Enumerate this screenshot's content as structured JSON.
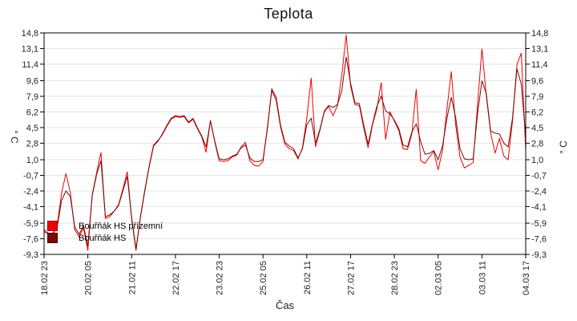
{
  "title": "Teplota",
  "colors": {
    "background": "#ffffff",
    "axis": "#000000",
    "grid": "#e4e4e4",
    "tick_text": "#222222",
    "series_red": "#ee0000",
    "series_dark": "#7a0808"
  },
  "chart_data": {
    "type": "line",
    "title": "Teplota",
    "xlabel": "Čas",
    "ylabel_left": "° C",
    "ylabel_right": "° C",
    "ylim": [
      -9.3,
      14.8
    ],
    "grid": "horizontal",
    "legend_position": "inside-bottom-left",
    "y_tick_values": [
      14.8,
      13.1,
      11.4,
      9.6,
      7.9,
      6.2,
      4.5,
      2.8,
      1.0,
      -0.7,
      -2.4,
      -4.1,
      -5.9,
      -7.6,
      -9.3
    ],
    "y_tick_labels": [
      "14,8",
      "13,1",
      "11,4",
      "9,6",
      "7,9",
      "6,2",
      "4,5",
      "2,8",
      "1,0",
      "-0,7",
      "-2,4",
      "-4,1",
      "-5,9",
      "-7,6",
      "-9,3"
    ],
    "x_tick_hours": [
      0,
      30,
      60,
      90,
      120,
      150,
      180,
      210,
      240,
      270,
      300,
      330
    ],
    "x_tick_labels": [
      "18.02 23",
      "20.02 05",
      "21.02 11",
      "22.02 17",
      "23.02 23",
      "25.02 05",
      "26.02 11",
      "27.02 17",
      "28.02 23",
      "02.03 05",
      "03.03 11",
      "04.03 17"
    ],
    "x_span_hours": 330,
    "t_start_hours": 0,
    "t_step_hours": 3,
    "series": [
      {
        "id": "prizemni",
        "name": "Bouřňák HS přízemní",
        "color": "#ee0000",
        "swatch_color": "#ee0000",
        "values": [
          -6.6,
          -7.0,
          -7.2,
          -6.1,
          -2.6,
          -0.5,
          -2.6,
          -6.6,
          -7.4,
          -6.4,
          -8.9,
          -2.8,
          -0.4,
          1.8,
          -5.4,
          -5.2,
          -4.6,
          -3.9,
          -2.2,
          -0.3,
          -5.5,
          -8.9,
          -5.2,
          -2.3,
          0.3,
          2.6,
          3.1,
          3.7,
          4.6,
          5.4,
          5.7,
          5.6,
          5.7,
          5.0,
          5.4,
          4.4,
          3.5,
          1.8,
          5.3,
          2.9,
          0.9,
          0.8,
          0.9,
          1.3,
          1.5,
          2.4,
          2.9,
          0.9,
          0.4,
          0.3,
          0.8,
          4.5,
          8.5,
          7.5,
          4.6,
          2.7,
          2.2,
          2.0,
          1.1,
          2.3,
          5.5,
          9.9,
          2.4,
          4.2,
          6.2,
          6.8,
          5.8,
          6.9,
          10.2,
          14.6,
          9.0,
          7.0,
          6.9,
          4.5,
          2.3,
          4.8,
          6.5,
          9.4,
          3.2,
          6.2,
          5.2,
          4.2,
          2.2,
          2.1,
          3.8,
          8.7,
          0.9,
          0.6,
          1.3,
          1.9,
          -0.1,
          2.0,
          6.5,
          10.6,
          4.8,
          1.3,
          0.1,
          0.4,
          0.7,
          7.0,
          13.1,
          8.0,
          3.9,
          1.7,
          3.3,
          1.4,
          1.0,
          5.3,
          11.4,
          12.6,
          2.0
        ]
      },
      {
        "id": "hs",
        "name": "Bouřňák HS",
        "color": "#7a0808",
        "swatch_color": "#7a0808",
        "values": [
          -6.8,
          -7.1,
          -7.0,
          -6.3,
          -3.4,
          -2.4,
          -3.0,
          -6.3,
          -7.1,
          -6.2,
          -8.4,
          -2.9,
          -0.6,
          0.9,
          -5.2,
          -5.0,
          -4.6,
          -4.0,
          -2.4,
          -0.8,
          -5.3,
          -8.7,
          -5.3,
          -2.4,
          0.2,
          2.5,
          3.0,
          3.8,
          4.7,
          5.5,
          5.8,
          5.7,
          5.8,
          5.1,
          5.5,
          4.5,
          3.6,
          2.4,
          5.2,
          3.0,
          1.1,
          1.0,
          1.1,
          1.4,
          1.6,
          2.3,
          2.6,
          1.2,
          0.8,
          0.8,
          1.0,
          4.3,
          8.7,
          7.8,
          4.8,
          2.9,
          2.5,
          2.2,
          1.2,
          2.2,
          4.8,
          5.5,
          2.8,
          4.3,
          6.3,
          6.9,
          6.7,
          7.0,
          8.5,
          12.2,
          9.3,
          7.2,
          7.1,
          4.8,
          2.7,
          4.9,
          6.8,
          7.9,
          6.3,
          6.0,
          5.3,
          4.4,
          2.6,
          2.4,
          4.0,
          4.9,
          3.0,
          1.6,
          1.7,
          2.0,
          1.0,
          2.5,
          5.5,
          7.8,
          5.6,
          2.2,
          1.1,
          1.0,
          1.1,
          6.0,
          9.6,
          8.2,
          4.1,
          3.9,
          3.8,
          2.8,
          2.4,
          5.6,
          10.9,
          9.2,
          3.5
        ]
      }
    ]
  }
}
